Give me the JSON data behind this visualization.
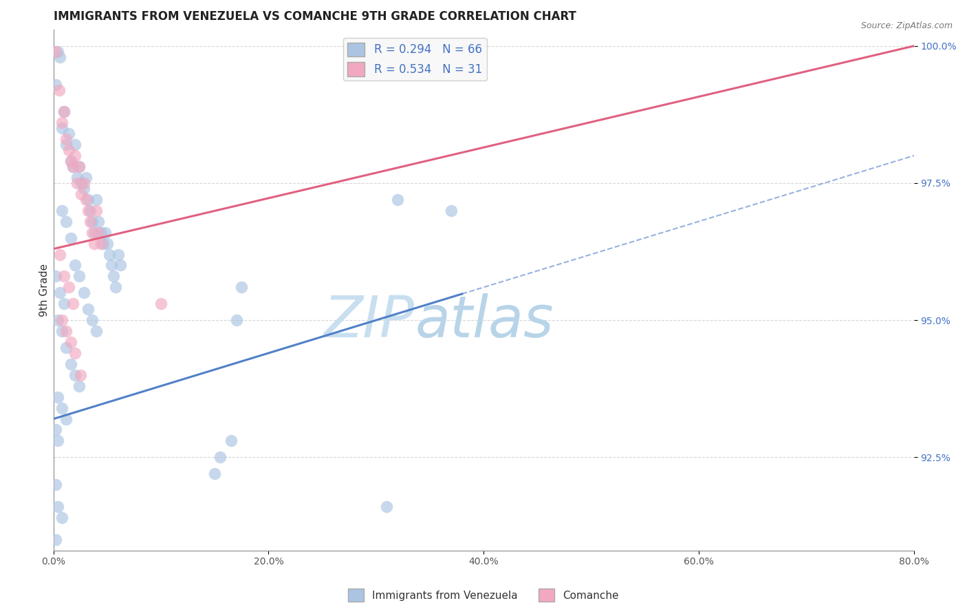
{
  "title": "IMMIGRANTS FROM VENEZUELA VS COMANCHE 9TH GRADE CORRELATION CHART",
  "source_text": "Source: ZipAtlas.com",
  "ylabel": "9th Grade",
  "xlim": [
    0.0,
    0.8
  ],
  "ylim": [
    0.908,
    1.003
  ],
  "ytick_labels": [
    "92.5%",
    "95.0%",
    "97.5%",
    "100.0%"
  ],
  "ytick_values": [
    0.925,
    0.95,
    0.975,
    1.0
  ],
  "xtick_labels": [
    "0.0%",
    "20.0%",
    "40.0%",
    "60.0%",
    "80.0%"
  ],
  "xtick_values": [
    0.0,
    0.2,
    0.4,
    0.6,
    0.8
  ],
  "blue_R": 0.294,
  "blue_N": 66,
  "pink_R": 0.534,
  "pink_N": 31,
  "blue_color": "#aac4e2",
  "pink_color": "#f2a8c0",
  "blue_line_color": "#5080c8",
  "pink_line_color": "#e06080",
  "blue_scatter": [
    [
      0.002,
      0.993
    ],
    [
      0.004,
      0.999
    ],
    [
      0.006,
      0.998
    ],
    [
      0.008,
      0.985
    ],
    [
      0.01,
      0.988
    ],
    [
      0.012,
      0.982
    ],
    [
      0.014,
      0.984
    ],
    [
      0.016,
      0.979
    ],
    [
      0.018,
      0.978
    ],
    [
      0.02,
      0.982
    ],
    [
      0.022,
      0.976
    ],
    [
      0.024,
      0.978
    ],
    [
      0.026,
      0.975
    ],
    [
      0.028,
      0.974
    ],
    [
      0.03,
      0.976
    ],
    [
      0.032,
      0.972
    ],
    [
      0.034,
      0.97
    ],
    [
      0.036,
      0.968
    ],
    [
      0.038,
      0.966
    ],
    [
      0.04,
      0.972
    ],
    [
      0.042,
      0.968
    ],
    [
      0.044,
      0.966
    ],
    [
      0.046,
      0.964
    ],
    [
      0.048,
      0.966
    ],
    [
      0.05,
      0.964
    ],
    [
      0.052,
      0.962
    ],
    [
      0.054,
      0.96
    ],
    [
      0.056,
      0.958
    ],
    [
      0.058,
      0.956
    ],
    [
      0.06,
      0.962
    ],
    [
      0.062,
      0.96
    ],
    [
      0.008,
      0.97
    ],
    [
      0.012,
      0.968
    ],
    [
      0.016,
      0.965
    ],
    [
      0.02,
      0.96
    ],
    [
      0.024,
      0.958
    ],
    [
      0.028,
      0.955
    ],
    [
      0.032,
      0.952
    ],
    [
      0.036,
      0.95
    ],
    [
      0.04,
      0.948
    ],
    [
      0.004,
      0.95
    ],
    [
      0.008,
      0.948
    ],
    [
      0.012,
      0.945
    ],
    [
      0.016,
      0.942
    ],
    [
      0.02,
      0.94
    ],
    [
      0.024,
      0.938
    ],
    [
      0.004,
      0.936
    ],
    [
      0.008,
      0.934
    ],
    [
      0.012,
      0.932
    ],
    [
      0.002,
      0.958
    ],
    [
      0.006,
      0.955
    ],
    [
      0.01,
      0.953
    ],
    [
      0.002,
      0.93
    ],
    [
      0.004,
      0.928
    ],
    [
      0.002,
      0.92
    ],
    [
      0.004,
      0.916
    ],
    [
      0.008,
      0.914
    ],
    [
      0.002,
      0.91
    ],
    [
      0.17,
      0.95
    ],
    [
      0.175,
      0.956
    ],
    [
      0.32,
      0.972
    ],
    [
      0.37,
      0.97
    ],
    [
      0.15,
      0.922
    ],
    [
      0.31,
      0.916
    ],
    [
      0.155,
      0.925
    ],
    [
      0.165,
      0.928
    ]
  ],
  "pink_scatter": [
    [
      0.002,
      0.999
    ],
    [
      0.005,
      0.992
    ],
    [
      0.008,
      0.986
    ],
    [
      0.01,
      0.988
    ],
    [
      0.012,
      0.983
    ],
    [
      0.014,
      0.981
    ],
    [
      0.016,
      0.979
    ],
    [
      0.018,
      0.978
    ],
    [
      0.02,
      0.98
    ],
    [
      0.022,
      0.975
    ],
    [
      0.024,
      0.978
    ],
    [
      0.026,
      0.973
    ],
    [
      0.028,
      0.975
    ],
    [
      0.03,
      0.972
    ],
    [
      0.032,
      0.97
    ],
    [
      0.034,
      0.968
    ],
    [
      0.036,
      0.966
    ],
    [
      0.038,
      0.964
    ],
    [
      0.04,
      0.97
    ],
    [
      0.042,
      0.966
    ],
    [
      0.044,
      0.964
    ],
    [
      0.006,
      0.962
    ],
    [
      0.01,
      0.958
    ],
    [
      0.014,
      0.956
    ],
    [
      0.018,
      0.953
    ],
    [
      0.008,
      0.95
    ],
    [
      0.012,
      0.948
    ],
    [
      0.016,
      0.946
    ],
    [
      0.02,
      0.944
    ],
    [
      0.1,
      0.953
    ],
    [
      0.025,
      0.94
    ]
  ],
  "legend_box_color": "#f8f8f8",
  "legend_border_color": "#cccccc",
  "title_fontsize": 12,
  "axis_label_fontsize": 11,
  "tick_fontsize": 10,
  "legend_fontsize": 12,
  "watermark_zip": "ZIP",
  "watermark_atlas": "atlas",
  "watermark_color": "#c8dff0",
  "watermark_fontsize": 60
}
